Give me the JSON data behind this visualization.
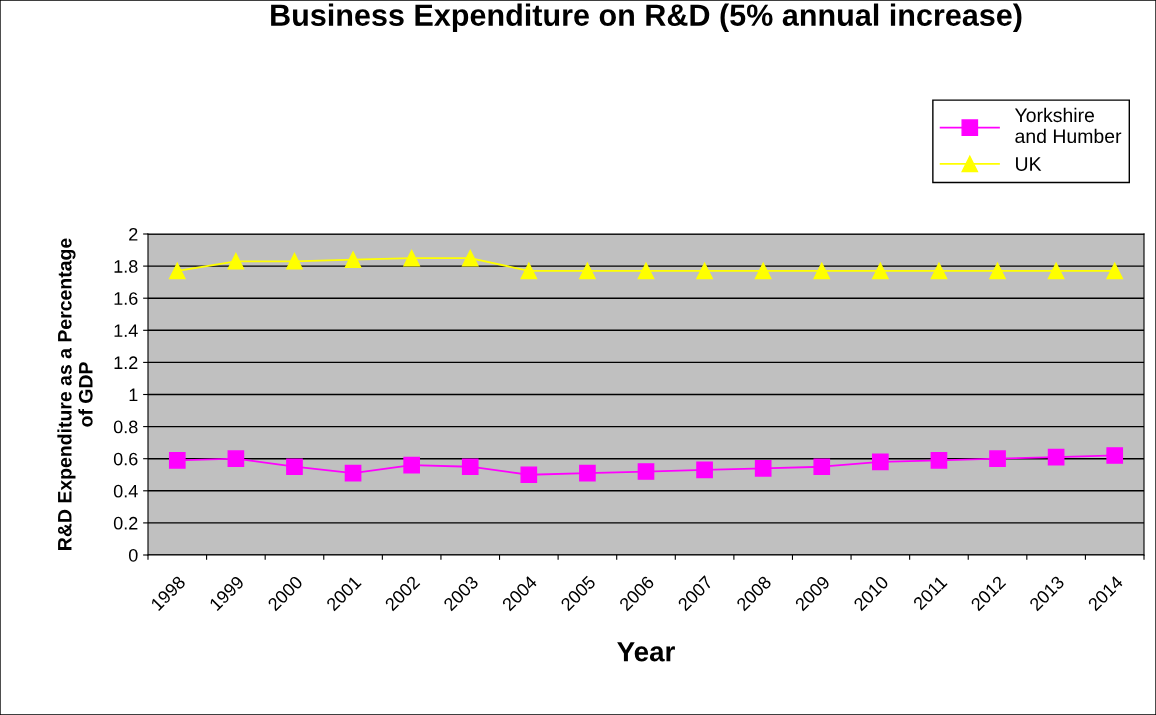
{
  "chart_data": {
    "type": "line",
    "title": "Business Expenditure on R&D (5% annual increase)",
    "xlabel": "Year",
    "ylabel": "R&D Expenditure as a Percentage\nof GDP",
    "categories": [
      "1998",
      "1999",
      "2000",
      "2001",
      "2002",
      "2003",
      "2004",
      "2005",
      "2006",
      "2007",
      "2008",
      "2009",
      "2010",
      "2011",
      "2012",
      "2013",
      "2014"
    ],
    "series": [
      {
        "name": "Yorkshire\nand Humber",
        "color": "#ff00ff",
        "marker": "square",
        "values": [
          0.59,
          0.6,
          0.55,
          0.51,
          0.56,
          0.55,
          0.5,
          0.51,
          0.52,
          0.53,
          0.54,
          0.55,
          0.58,
          0.59,
          0.6,
          0.61,
          0.62
        ]
      },
      {
        "name": "UK",
        "color": "#ffff00",
        "marker": "triangle",
        "values": [
          1.77,
          1.83,
          1.83,
          1.84,
          1.85,
          1.85,
          1.77,
          1.77,
          1.77,
          1.77,
          1.77,
          1.77,
          1.77,
          1.77,
          1.77,
          1.77,
          1.77
        ]
      }
    ],
    "ylim": [
      0,
      2
    ],
    "yticks": [
      0,
      0.2,
      0.4,
      0.6,
      0.8,
      1,
      1.2,
      1.4,
      1.6,
      1.8,
      2
    ],
    "grid": "y",
    "legend": "top right"
  }
}
